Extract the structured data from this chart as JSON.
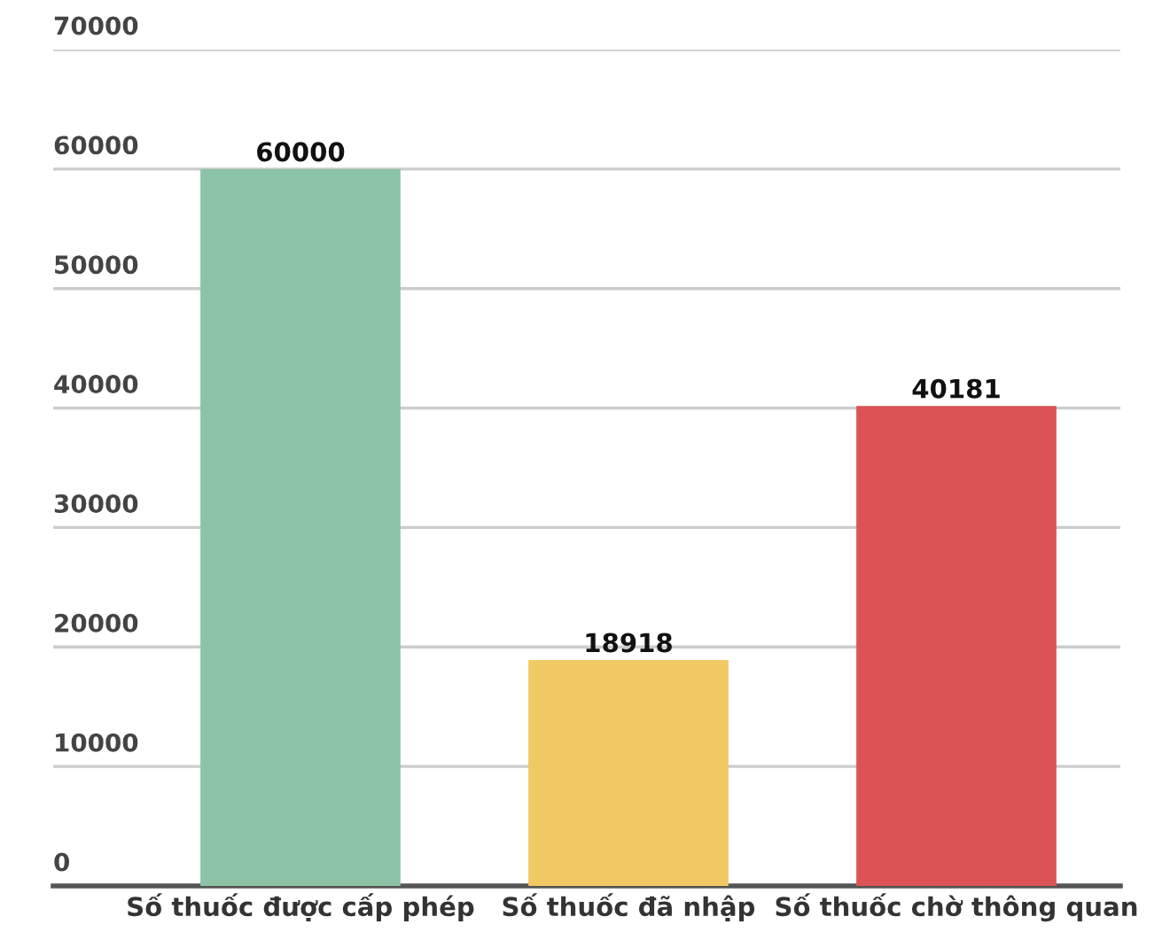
{
  "chart_data": {
    "type": "bar",
    "categories": [
      "Số thuốc được cấp phép",
      "Số thuốc đã nhập",
      "Số thuốc chờ thông quan"
    ],
    "values": [
      60000,
      18918,
      40181
    ],
    "colors": [
      "#8cc2a5",
      "#f0c964",
      "#db5355"
    ],
    "ylim": [
      0,
      70000
    ],
    "yticks": [
      0,
      10000,
      20000,
      30000,
      40000,
      50000,
      60000,
      70000
    ],
    "grid": "y",
    "data_labels": true
  }
}
